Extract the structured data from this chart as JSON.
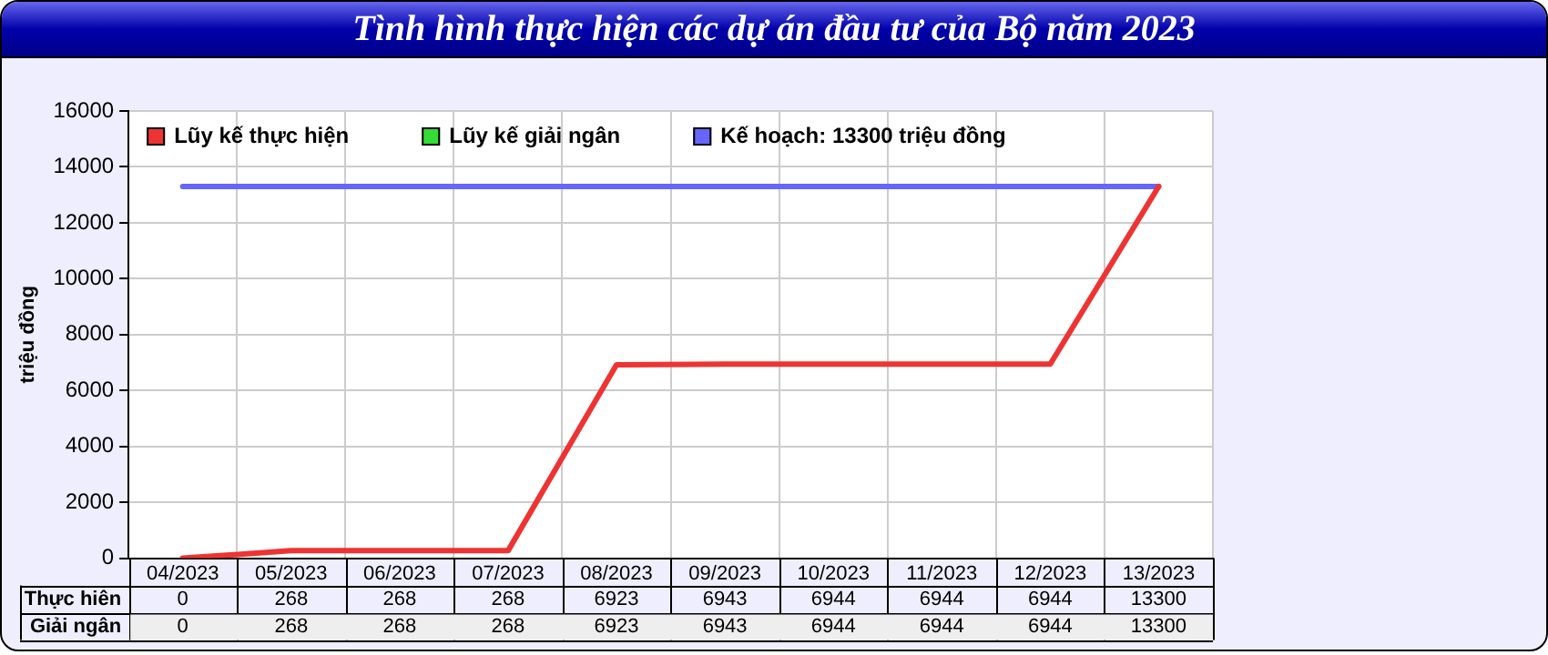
{
  "chart_data": {
    "type": "line",
    "title": "Tình hình thực hiện các dự án đầu tư của Bộ năm 2023",
    "ylabel": "triệu đồng",
    "categories": [
      "04/2023",
      "05/2023",
      "06/2023",
      "07/2023",
      "08/2023",
      "09/2023",
      "10/2023",
      "11/2023",
      "12/2023",
      "13/2023"
    ],
    "series": [
      {
        "name": "Lũy kế thực hiện",
        "color": "#ee3333",
        "values": [
          0,
          268,
          268,
          268,
          6923,
          6943,
          6944,
          6944,
          6944,
          13300
        ],
        "value_labels": [
          "0",
          "268",
          "268",
          "268",
          "6923",
          "6943",
          "6944",
          "6944",
          "6944",
          "13300"
        ]
      },
      {
        "name": "Lũy kế giải ngân",
        "color": "#33dd33",
        "values": [
          null,
          null,
          null,
          null,
          null,
          null,
          null,
          null,
          null,
          null
        ],
        "value_labels": [
          "0",
          "268",
          "268",
          "268",
          "6923",
          "6943",
          "6944",
          "6944",
          "6944",
          "13300"
        ]
      },
      {
        "name": "Kế hoạch: 13300 triệu đồng",
        "color": "#6666ff",
        "values": [
          13300,
          13300,
          13300,
          13300,
          13300,
          13300,
          13300,
          13300,
          13300,
          13300
        ]
      }
    ],
    "annotations": [
      "Thực hiên",
      "Giải ngân"
    ],
    "ylim": [
      0,
      16000
    ],
    "yticks": [
      0,
      2000,
      4000,
      6000,
      8000,
      10000,
      12000,
      14000,
      16000
    ],
    "grid": true,
    "legend": "top left",
    "marker": "none",
    "line_style": "solid"
  }
}
